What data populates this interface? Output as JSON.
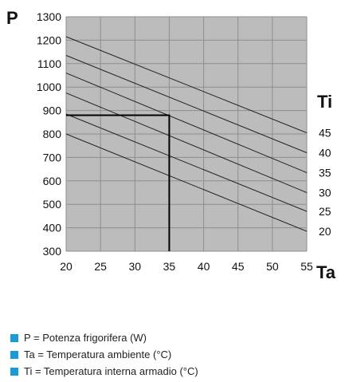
{
  "chart_data": {
    "type": "line",
    "xlabel": "Ta",
    "ylabel": "P",
    "series_label": "Ti",
    "x_ticks": [
      20,
      25,
      30,
      35,
      40,
      45,
      50,
      55
    ],
    "y_ticks": [
      300,
      400,
      500,
      600,
      700,
      800,
      900,
      1000,
      1100,
      1200,
      1300
    ],
    "xlim": [
      20,
      55
    ],
    "ylim": [
      300,
      1300
    ],
    "grid": true,
    "series": [
      {
        "name": "45",
        "x": [
          20,
          55
        ],
        "y": [
          1215,
          805
        ]
      },
      {
        "name": "40",
        "x": [
          20,
          55
        ],
        "y": [
          1135,
          720
        ]
      },
      {
        "name": "35",
        "x": [
          20,
          55
        ],
        "y": [
          1060,
          635
        ]
      },
      {
        "name": "30",
        "x": [
          20,
          55
        ],
        "y": [
          975,
          550
        ]
      },
      {
        "name": "25",
        "x": [
          20,
          55
        ],
        "y": [
          885,
          470
        ]
      },
      {
        "name": "20",
        "x": [
          20,
          55
        ],
        "y": [
          800,
          385
        ]
      }
    ],
    "reference": {
      "x": 35,
      "y": 880
    },
    "colors": {
      "plot_bg": "#bcbcbc",
      "grid": "#8e8e8e",
      "line": "#222222",
      "reference": "#000000",
      "accent": "#1a9ad6"
    }
  },
  "legend": [
    {
      "text": "P = Potenza frigorifera (W)"
    },
    {
      "text": "Ta = Temperatura ambiente (°C)"
    },
    {
      "text": "Ti = Temperatura interna armadio (°C)"
    }
  ]
}
